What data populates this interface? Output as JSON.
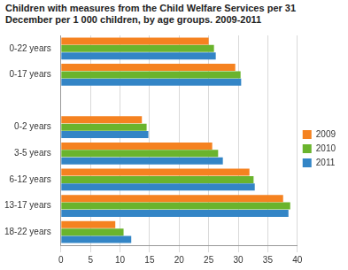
{
  "chart_data": {
    "type": "bar",
    "orientation": "horizontal",
    "title": "Children with measures from the Child Welfare Services per 31 December per 1 000 children, by age groups. 2009-2011",
    "categories": [
      "0-22 years",
      "0-17 years",
      null,
      "0-2 years",
      "3-5 years",
      "6-12 years",
      "13-17 years",
      "18-22 years"
    ],
    "series": [
      {
        "name": "2009",
        "color": "#f58220",
        "values": [
          25.0,
          29.5,
          null,
          13.7,
          25.6,
          31.9,
          37.6,
          9.2
        ]
      },
      {
        "name": "2010",
        "color": "#6ab42d",
        "values": [
          25.9,
          30.4,
          null,
          14.5,
          26.6,
          32.6,
          38.8,
          10.6
        ]
      },
      {
        "name": "2011",
        "color": "#3385c6",
        "values": [
          26.2,
          30.5,
          null,
          14.8,
          27.4,
          32.8,
          38.5,
          11.9
        ]
      }
    ],
    "xlim": [
      0,
      40
    ],
    "xticks": [
      0,
      5,
      10,
      15,
      20,
      25,
      30,
      35,
      40
    ],
    "grid": true,
    "legend": "right"
  }
}
